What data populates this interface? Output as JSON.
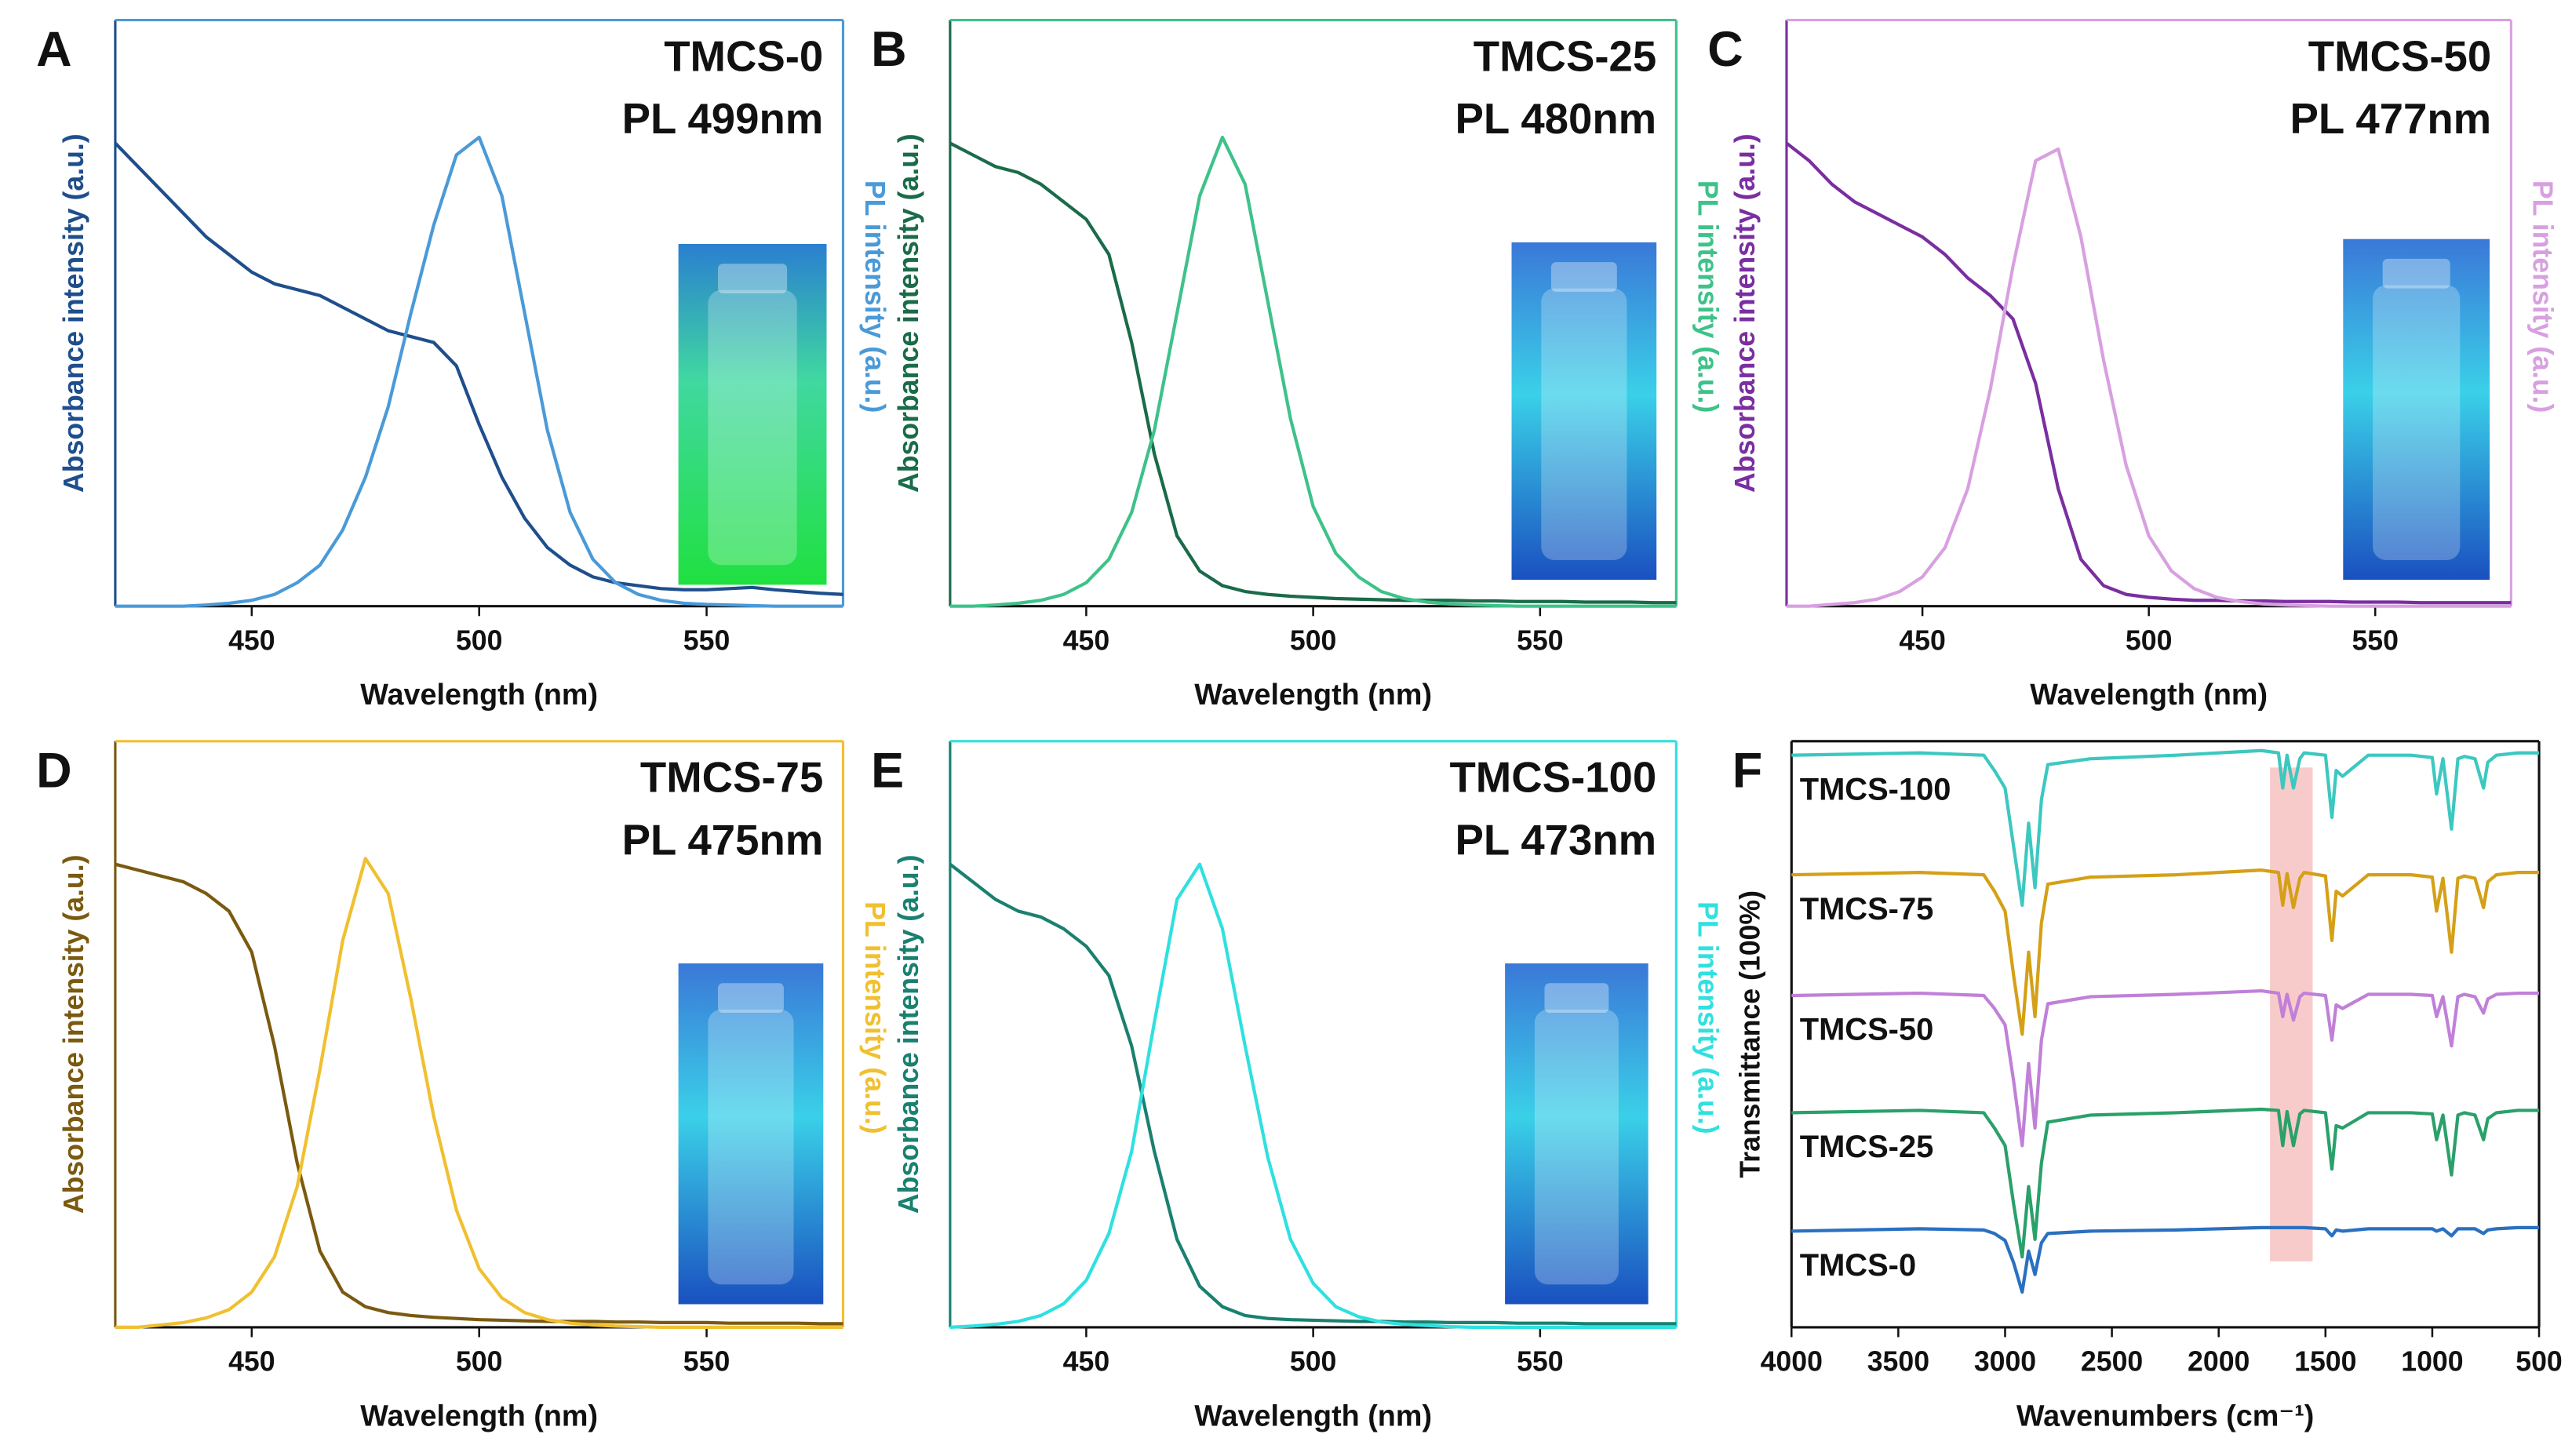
{
  "chart_data": [
    {
      "type": "line",
      "panel": "A",
      "title": "TMCS-0",
      "subtitle": "PL 499nm",
      "xlabel": "Wavelength (nm)",
      "ylabel": "Absorbance intensity (a.u.)",
      "y2label": "PL intensity (a.u.)",
      "xlim": [
        420,
        580
      ],
      "xticks": [
        450,
        500,
        550
      ],
      "ylim": [
        0,
        1
      ],
      "y2lim": [
        0,
        1
      ],
      "x": [
        420,
        425,
        430,
        435,
        440,
        445,
        450,
        455,
        460,
        465,
        470,
        475,
        480,
        485,
        490,
        495,
        500,
        505,
        510,
        515,
        520,
        525,
        530,
        535,
        540,
        545,
        550,
        555,
        560,
        565,
        570,
        575,
        580
      ],
      "series": [
        {
          "color": "#1f4e8c",
          "values": [
            0.79,
            0.75,
            0.71,
            0.67,
            0.63,
            0.6,
            0.57,
            0.55,
            0.54,
            0.53,
            0.51,
            0.49,
            0.47,
            0.46,
            0.45,
            0.41,
            0.31,
            0.22,
            0.15,
            0.1,
            0.07,
            0.05,
            0.04,
            0.035,
            0.03,
            0.028,
            0.028,
            0.03,
            0.032,
            0.028,
            0.025,
            0.022,
            0.02
          ]
        },
        {
          "color": "#4a9ad8",
          "axis": "y2",
          "values": [
            0,
            0,
            0,
            0,
            0.002,
            0.005,
            0.01,
            0.02,
            0.04,
            0.07,
            0.13,
            0.22,
            0.34,
            0.5,
            0.65,
            0.77,
            0.8,
            0.7,
            0.5,
            0.3,
            0.16,
            0.08,
            0.04,
            0.02,
            0.01,
            0.005,
            0.003,
            0.002,
            0.001,
            0,
            0,
            0,
            0
          ]
        }
      ]
    },
    {
      "type": "line",
      "panel": "B",
      "title": "TMCS-25",
      "subtitle": "PL 480nm",
      "xlabel": "Wavelength (nm)",
      "ylabel": "Absorbance intensity (a.u.)",
      "y2label": "PL intensity (a.u.)",
      "xlim": [
        420,
        580
      ],
      "xticks": [
        450,
        500,
        550
      ],
      "ylim": [
        0,
        1
      ],
      "y2lim": [
        0,
        1
      ],
      "x": [
        420,
        425,
        430,
        435,
        440,
        445,
        450,
        455,
        460,
        465,
        470,
        475,
        480,
        485,
        490,
        495,
        500,
        505,
        510,
        515,
        520,
        525,
        530,
        535,
        540,
        545,
        550,
        555,
        560,
        565,
        570,
        575,
        580
      ],
      "series": [
        {
          "color": "#1a6b4a",
          "values": [
            0.79,
            0.77,
            0.75,
            0.74,
            0.72,
            0.69,
            0.66,
            0.6,
            0.45,
            0.26,
            0.12,
            0.06,
            0.035,
            0.025,
            0.02,
            0.017,
            0.015,
            0.013,
            0.012,
            0.011,
            0.01,
            0.01,
            0.01,
            0.009,
            0.009,
            0.008,
            0.008,
            0.008,
            0.007,
            0.007,
            0.007,
            0.006,
            0.006
          ]
        },
        {
          "color": "#3ec28a",
          "axis": "y2",
          "values": [
            0,
            0,
            0.002,
            0.005,
            0.01,
            0.02,
            0.04,
            0.08,
            0.16,
            0.3,
            0.5,
            0.7,
            0.8,
            0.72,
            0.52,
            0.32,
            0.17,
            0.09,
            0.05,
            0.025,
            0.013,
            0.007,
            0.004,
            0.002,
            0.001,
            0,
            0,
            0,
            0,
            0,
            0,
            0,
            0
          ]
        }
      ]
    },
    {
      "type": "line",
      "panel": "C",
      "title": "TMCS-50",
      "subtitle": "PL 477nm",
      "xlabel": "Wavelength (nm)",
      "ylabel": "Absorbance intensity (a.u.)",
      "y2label": "PL intensity (a.u.)",
      "xlim": [
        420,
        580
      ],
      "xticks": [
        450,
        500,
        550
      ],
      "ylim": [
        0,
        1
      ],
      "y2lim": [
        0,
        1
      ],
      "x": [
        420,
        425,
        430,
        435,
        440,
        445,
        450,
        455,
        460,
        465,
        470,
        475,
        480,
        485,
        490,
        495,
        500,
        505,
        510,
        515,
        520,
        525,
        530,
        535,
        540,
        545,
        550,
        555,
        560,
        565,
        570,
        575,
        580
      ],
      "series": [
        {
          "color": "#7a2ea0",
          "values": [
            0.79,
            0.76,
            0.72,
            0.69,
            0.67,
            0.65,
            0.63,
            0.6,
            0.56,
            0.53,
            0.49,
            0.38,
            0.2,
            0.08,
            0.035,
            0.02,
            0.015,
            0.012,
            0.01,
            0.01,
            0.009,
            0.009,
            0.008,
            0.008,
            0.008,
            0.007,
            0.007,
            0.007,
            0.006,
            0.006,
            0.006,
            0.006,
            0.006
          ]
        },
        {
          "color": "#d8a0e0",
          "axis": "y2",
          "values": [
            0,
            0,
            0.003,
            0.006,
            0.012,
            0.025,
            0.05,
            0.1,
            0.2,
            0.37,
            0.58,
            0.76,
            0.78,
            0.63,
            0.42,
            0.24,
            0.12,
            0.06,
            0.03,
            0.015,
            0.008,
            0.004,
            0.002,
            0.001,
            0,
            0,
            0,
            0,
            0,
            0,
            0,
            0,
            0
          ]
        }
      ]
    },
    {
      "type": "line",
      "panel": "D",
      "title": "TMCS-75",
      "subtitle": "PL 475nm",
      "xlabel": "Wavelength (nm)",
      "ylabel": "Absorbance intensity (a.u.)",
      "y2label": "PL intensity (a.u.)",
      "xlim": [
        420,
        580
      ],
      "xticks": [
        450,
        500,
        550
      ],
      "ylim": [
        0,
        1
      ],
      "y2lim": [
        0,
        1
      ],
      "x": [
        420,
        425,
        430,
        435,
        440,
        445,
        450,
        455,
        460,
        465,
        470,
        475,
        480,
        485,
        490,
        495,
        500,
        505,
        510,
        515,
        520,
        525,
        530,
        535,
        540,
        545,
        550,
        555,
        560,
        565,
        570,
        575,
        580
      ],
      "series": [
        {
          "color": "#7a5a10",
          "values": [
            0.79,
            0.78,
            0.77,
            0.76,
            0.74,
            0.71,
            0.64,
            0.48,
            0.28,
            0.13,
            0.06,
            0.035,
            0.025,
            0.02,
            0.017,
            0.015,
            0.013,
            0.012,
            0.011,
            0.01,
            0.01,
            0.01,
            0.009,
            0.009,
            0.008,
            0.008,
            0.008,
            0.007,
            0.007,
            0.007,
            0.007,
            0.006,
            0.006
          ]
        },
        {
          "color": "#f0c030",
          "axis": "y2",
          "values": [
            0,
            0,
            0.004,
            0.008,
            0.016,
            0.03,
            0.06,
            0.12,
            0.24,
            0.44,
            0.66,
            0.8,
            0.74,
            0.56,
            0.36,
            0.2,
            0.1,
            0.05,
            0.025,
            0.013,
            0.007,
            0.004,
            0.002,
            0.001,
            0,
            0,
            0,
            0,
            0,
            0,
            0,
            0,
            0
          ]
        }
      ]
    },
    {
      "type": "line",
      "panel": "E",
      "title": "TMCS-100",
      "subtitle": "PL 473nm",
      "xlabel": "Wavelength (nm)",
      "ylabel": "Absorbance intensity (a.u.)",
      "y2label": "PL intensity (a.u.)",
      "xlim": [
        420,
        580
      ],
      "xticks": [
        450,
        500,
        550
      ],
      "ylim": [
        0,
        1
      ],
      "y2lim": [
        0,
        1
      ],
      "x": [
        420,
        425,
        430,
        435,
        440,
        445,
        450,
        455,
        460,
        465,
        470,
        475,
        480,
        485,
        490,
        495,
        500,
        505,
        510,
        515,
        520,
        525,
        530,
        535,
        540,
        545,
        550,
        555,
        560,
        565,
        570,
        575,
        580
      ],
      "series": [
        {
          "color": "#1a8070",
          "values": [
            0.79,
            0.76,
            0.73,
            0.71,
            0.7,
            0.68,
            0.65,
            0.6,
            0.48,
            0.3,
            0.15,
            0.07,
            0.035,
            0.02,
            0.015,
            0.013,
            0.012,
            0.011,
            0.01,
            0.01,
            0.009,
            0.009,
            0.008,
            0.008,
            0.008,
            0.007,
            0.007,
            0.007,
            0.006,
            0.006,
            0.006,
            0.006,
            0.006
          ]
        },
        {
          "color": "#30e0e0",
          "axis": "y2",
          "values": [
            0,
            0.002,
            0.005,
            0.01,
            0.02,
            0.04,
            0.08,
            0.16,
            0.3,
            0.52,
            0.73,
            0.79,
            0.68,
            0.48,
            0.29,
            0.15,
            0.075,
            0.035,
            0.018,
            0.009,
            0.005,
            0.003,
            0.001,
            0,
            0,
            0,
            0,
            0,
            0,
            0,
            0,
            0,
            0
          ]
        }
      ]
    },
    {
      "type": "line",
      "panel": "F",
      "xlabel": "Wavenumbers (cm⁻¹)",
      "ylabel": "Transmittance (100%)",
      "xlim": [
        4000,
        500
      ],
      "xticks": [
        4000,
        3500,
        3000,
        2500,
        2000,
        1500,
        1000,
        500
      ],
      "ylim": [
        0,
        5
      ],
      "highlight": [
        1760,
        1560
      ],
      "x": [
        4000,
        3700,
        3400,
        3100,
        3050,
        3000,
        2960,
        2920,
        2890,
        2860,
        2830,
        2800,
        2600,
        2200,
        1800,
        1720,
        1700,
        1680,
        1650,
        1620,
        1600,
        1500,
        1470,
        1450,
        1420,
        1300,
        1100,
        1000,
        980,
        950,
        910,
        880,
        850,
        800,
        760,
        740,
        700,
        600,
        500
      ],
      "series": [
        {
          "name": "TMCS-100",
          "color": "#3cc8c0",
          "values": [
            4.88,
            4.89,
            4.9,
            4.88,
            4.75,
            4.6,
            4.1,
            3.6,
            4.3,
            3.75,
            4.5,
            4.8,
            4.85,
            4.88,
            4.92,
            4.9,
            4.6,
            4.88,
            4.6,
            4.85,
            4.9,
            4.88,
            4.35,
            4.75,
            4.7,
            4.88,
            4.88,
            4.86,
            4.55,
            4.85,
            4.25,
            4.85,
            4.87,
            4.85,
            4.6,
            4.82,
            4.88,
            4.9,
            4.9
          ]
        },
        {
          "name": "TMCS-75",
          "color": "#d4a017",
          "values": [
            3.86,
            3.87,
            3.88,
            3.86,
            3.72,
            3.55,
            3.0,
            2.5,
            3.2,
            2.65,
            3.45,
            3.78,
            3.84,
            3.86,
            3.9,
            3.88,
            3.6,
            3.87,
            3.58,
            3.83,
            3.88,
            3.85,
            3.3,
            3.72,
            3.68,
            3.86,
            3.86,
            3.84,
            3.55,
            3.83,
            3.2,
            3.83,
            3.85,
            3.83,
            3.58,
            3.8,
            3.86,
            3.88,
            3.88
          ]
        },
        {
          "name": "TMCS-50",
          "color": "#c080d8",
          "values": [
            2.83,
            2.84,
            2.85,
            2.83,
            2.72,
            2.58,
            2.1,
            1.55,
            2.25,
            1.7,
            2.45,
            2.76,
            2.82,
            2.84,
            2.87,
            2.85,
            2.65,
            2.84,
            2.62,
            2.82,
            2.85,
            2.83,
            2.45,
            2.75,
            2.72,
            2.84,
            2.84,
            2.83,
            2.65,
            2.82,
            2.4,
            2.82,
            2.84,
            2.82,
            2.68,
            2.8,
            2.84,
            2.85,
            2.85
          ]
        },
        {
          "name": "TMCS-25",
          "color": "#2aa06a",
          "values": [
            1.83,
            1.84,
            1.85,
            1.83,
            1.7,
            1.55,
            1.05,
            0.6,
            1.2,
            0.75,
            1.4,
            1.75,
            1.81,
            1.83,
            1.86,
            1.85,
            1.55,
            1.84,
            1.55,
            1.82,
            1.85,
            1.83,
            1.35,
            1.72,
            1.7,
            1.83,
            1.83,
            1.82,
            1.6,
            1.81,
            1.3,
            1.81,
            1.83,
            1.81,
            1.6,
            1.78,
            1.83,
            1.85,
            1.85
          ]
        },
        {
          "name": "TMCS-0",
          "color": "#2a70c0",
          "values": [
            0.82,
            0.83,
            0.84,
            0.83,
            0.8,
            0.74,
            0.55,
            0.3,
            0.65,
            0.45,
            0.72,
            0.8,
            0.82,
            0.83,
            0.85,
            0.85,
            0.85,
            0.85,
            0.85,
            0.85,
            0.85,
            0.84,
            0.78,
            0.83,
            0.82,
            0.84,
            0.84,
            0.84,
            0.82,
            0.84,
            0.78,
            0.84,
            0.84,
            0.84,
            0.8,
            0.83,
            0.84,
            0.85,
            0.85
          ]
        }
      ]
    }
  ]
}
